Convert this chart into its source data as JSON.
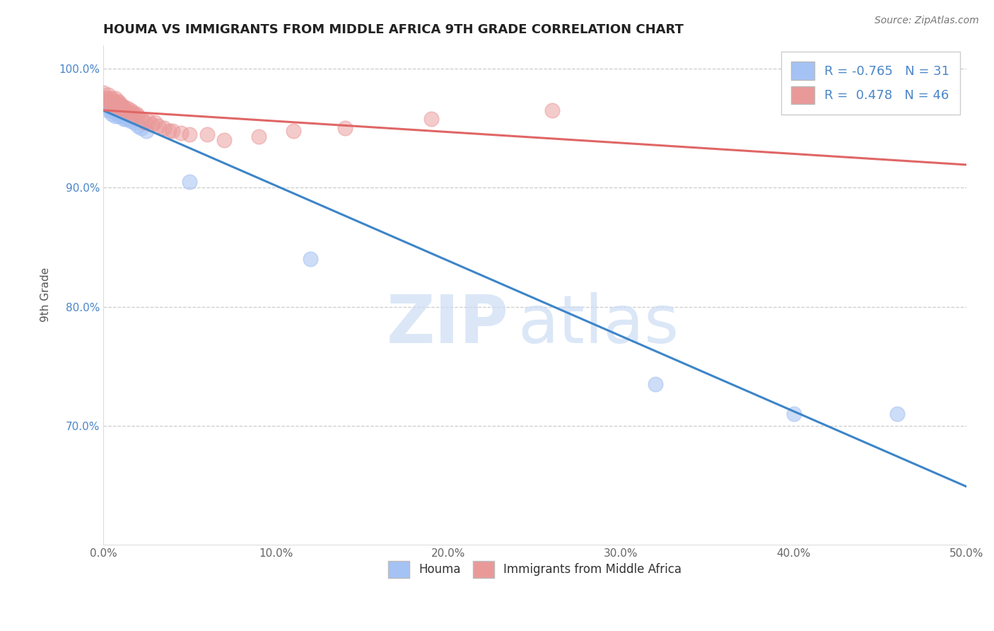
{
  "title": "HOUMA VS IMMIGRANTS FROM MIDDLE AFRICA 9TH GRADE CORRELATION CHART",
  "source": "Source: ZipAtlas.com",
  "ylabel": "9th Grade",
  "xmin": 0.0,
  "xmax": 0.5,
  "ymin": 0.6,
  "ymax": 1.02,
  "yticks": [
    0.7,
    0.8,
    0.9,
    1.0
  ],
  "ytick_labels": [
    "70.0%",
    "80.0%",
    "90.0%",
    "100.0%"
  ],
  "xticks": [
    0.0,
    0.1,
    0.2,
    0.3,
    0.4,
    0.5
  ],
  "xtick_labels": [
    "0.0%",
    "10.0%",
    "20.0%",
    "30.0%",
    "40.0%",
    "50.0%"
  ],
  "blue_color": "#a4c2f4",
  "pink_color": "#ea9999",
  "blue_line_color": "#3d85c8",
  "pink_line_color": "#e06666",
  "R_blue": -0.765,
  "N_blue": 31,
  "R_pink": 0.478,
  "N_pink": 46,
  "blue_scatter_x": [
    0.001,
    0.002,
    0.003,
    0.004,
    0.005,
    0.005,
    0.006,
    0.007,
    0.007,
    0.008,
    0.008,
    0.009,
    0.009,
    0.01,
    0.01,
    0.011,
    0.012,
    0.012,
    0.013,
    0.014,
    0.015,
    0.016,
    0.018,
    0.02,
    0.022,
    0.025,
    0.05,
    0.12,
    0.32,
    0.4,
    0.46
  ],
  "blue_scatter_y": [
    0.971,
    0.968,
    0.965,
    0.97,
    0.965,
    0.962,
    0.967,
    0.963,
    0.96,
    0.968,
    0.963,
    0.965,
    0.96,
    0.963,
    0.96,
    0.962,
    0.96,
    0.958,
    0.958,
    0.96,
    0.958,
    0.956,
    0.955,
    0.952,
    0.95,
    0.948,
    0.905,
    0.84,
    0.735,
    0.71,
    0.71
  ],
  "pink_scatter_x": [
    0.0,
    0.001,
    0.002,
    0.002,
    0.003,
    0.004,
    0.005,
    0.005,
    0.006,
    0.007,
    0.007,
    0.008,
    0.008,
    0.009,
    0.009,
    0.01,
    0.01,
    0.011,
    0.012,
    0.012,
    0.013,
    0.014,
    0.015,
    0.016,
    0.017,
    0.018,
    0.019,
    0.02,
    0.022,
    0.024,
    0.026,
    0.028,
    0.03,
    0.032,
    0.035,
    0.038,
    0.04,
    0.045,
    0.05,
    0.06,
    0.07,
    0.09,
    0.11,
    0.14,
    0.19,
    0.26
  ],
  "pink_scatter_y": [
    0.98,
    0.975,
    0.975,
    0.972,
    0.978,
    0.972,
    0.975,
    0.97,
    0.973,
    0.975,
    0.97,
    0.972,
    0.968,
    0.972,
    0.968,
    0.97,
    0.967,
    0.968,
    0.966,
    0.968,
    0.965,
    0.967,
    0.963,
    0.965,
    0.963,
    0.96,
    0.962,
    0.96,
    0.958,
    0.955,
    0.956,
    0.953,
    0.955,
    0.952,
    0.95,
    0.948,
    0.948,
    0.946,
    0.945,
    0.945,
    0.94,
    0.943,
    0.948,
    0.95,
    0.958,
    0.965
  ],
  "background_color": "#ffffff",
  "grid_color": "#cccccc",
  "watermark_zip": "ZIP",
  "watermark_atlas": "atlas",
  "legend_loc": "upper right"
}
